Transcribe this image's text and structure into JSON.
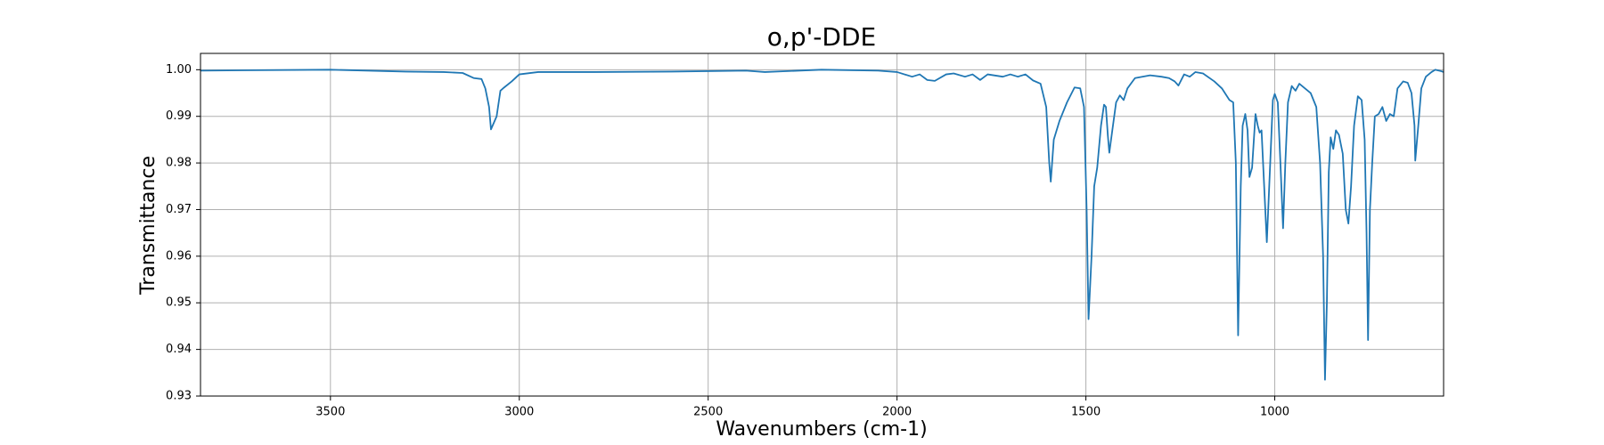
{
  "chart_data": {
    "type": "line",
    "title": "o,p'-DDE",
    "x_label": "Wavenumbers (cm-1)",
    "y_label": "Transmittance",
    "x": [
      3844,
      3700,
      3500,
      3300,
      3200,
      3150,
      3120,
      3100,
      3090,
      3080,
      3075,
      3060,
      3050,
      3040,
      3020,
      3000,
      2950,
      2800,
      2600,
      2400,
      2350,
      2200,
      2050,
      2000,
      1960,
      1940,
      1920,
      1900,
      1870,
      1850,
      1820,
      1800,
      1780,
      1760,
      1720,
      1700,
      1680,
      1660,
      1640,
      1620,
      1605,
      1597,
      1593,
      1585,
      1570,
      1550,
      1530,
      1515,
      1505,
      1498,
      1493,
      1485,
      1478,
      1470,
      1460,
      1452,
      1447,
      1442,
      1438,
      1430,
      1420,
      1410,
      1400,
      1390,
      1370,
      1330,
      1300,
      1280,
      1265,
      1255,
      1240,
      1225,
      1210,
      1190,
      1160,
      1140,
      1120,
      1110,
      1103,
      1097,
      1090,
      1085,
      1078,
      1072,
      1067,
      1060,
      1051,
      1045,
      1040,
      1035,
      1021,
      1012,
      1005,
      1000,
      992,
      985,
      978,
      972,
      965,
      955,
      945,
      935,
      920,
      905,
      890,
      880,
      872,
      867,
      862,
      857,
      852,
      845,
      838,
      830,
      820,
      812,
      805,
      798,
      790,
      780,
      770,
      762,
      757,
      753,
      748,
      742,
      735,
      725,
      715,
      705,
      695,
      685,
      675,
      660,
      648,
      638,
      630,
      628,
      620,
      612,
      600,
      585,
      575,
      560,
      553
    ],
    "values": [
      0.9998,
      0.9999,
      1.0,
      0.9996,
      0.9995,
      0.9993,
      0.9982,
      0.998,
      0.996,
      0.992,
      0.9872,
      0.99,
      0.9955,
      0.9962,
      0.9975,
      0.999,
      0.9995,
      0.9995,
      0.9996,
      0.9998,
      0.9995,
      1.0,
      0.9998,
      0.9995,
      0.9985,
      0.999,
      0.9978,
      0.9976,
      0.999,
      0.9992,
      0.9985,
      0.999,
      0.9978,
      0.999,
      0.9985,
      0.999,
      0.9985,
      0.999,
      0.9977,
      0.997,
      0.992,
      0.98,
      0.976,
      0.985,
      0.989,
      0.993,
      0.9962,
      0.996,
      0.992,
      0.97,
      0.9465,
      0.96,
      0.975,
      0.979,
      0.988,
      0.9925,
      0.992,
      0.986,
      0.9822,
      0.987,
      0.993,
      0.9945,
      0.9935,
      0.996,
      0.9982,
      0.9988,
      0.9985,
      0.9982,
      0.9975,
      0.9966,
      0.999,
      0.9985,
      0.9995,
      0.9992,
      0.9975,
      0.996,
      0.9935,
      0.993,
      0.98,
      0.943,
      0.975,
      0.988,
      0.9905,
      0.987,
      0.977,
      0.979,
      0.9905,
      0.988,
      0.9865,
      0.987,
      0.963,
      0.98,
      0.9935,
      0.9948,
      0.993,
      0.98,
      0.966,
      0.98,
      0.993,
      0.9965,
      0.9955,
      0.997,
      0.996,
      0.995,
      0.992,
      0.98,
      0.96,
      0.9335,
      0.95,
      0.978,
      0.9855,
      0.983,
      0.987,
      0.986,
      0.982,
      0.97,
      0.967,
      0.975,
      0.988,
      0.9943,
      0.9935,
      0.985,
      0.965,
      0.942,
      0.97,
      0.98,
      0.99,
      0.9905,
      0.992,
      0.989,
      0.9905,
      0.99,
      0.996,
      0.9975,
      0.9972,
      0.995,
      0.988,
      0.9805,
      0.988,
      0.996,
      0.9985,
      0.9995,
      1.0,
      0.9997,
      0.9995
    ],
    "color": "#1f77b4",
    "xlim": [
      3844,
      553
    ],
    "xticks": [
      3500,
      3000,
      2500,
      2000,
      1500,
      1000
    ],
    "ylim": [
      0.93,
      1.0035
    ],
    "yticks": [
      0.93,
      0.94,
      0.95,
      0.96,
      0.97,
      0.98,
      0.99,
      {
        "value": 1.0,
        "label": "1.00"
      }
    ],
    "grid": true
  }
}
